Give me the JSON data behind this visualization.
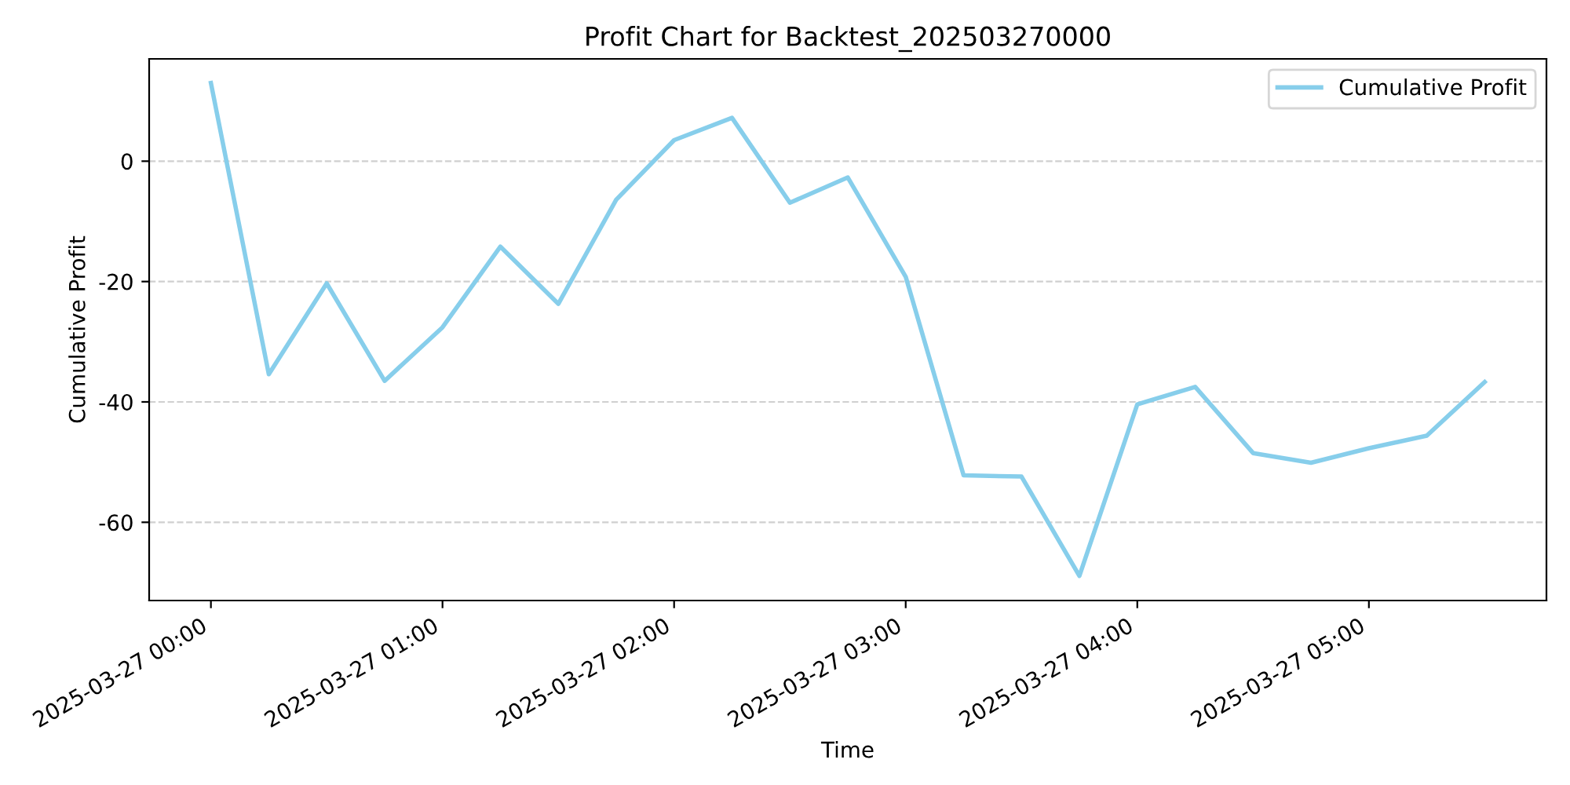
{
  "chart_data": {
    "type": "line",
    "title": "Profit Chart for Backtest_202503270000",
    "xlabel": "Time",
    "ylabel": "Cumulative Profit",
    "x": [
      "2025-03-27T00:00",
      "2025-03-27T00:15",
      "2025-03-27T00:30",
      "2025-03-27T00:45",
      "2025-03-27T01:00",
      "2025-03-27T01:15",
      "2025-03-27T01:30",
      "2025-03-27T01:45",
      "2025-03-27T02:00",
      "2025-03-27T02:15",
      "2025-03-27T02:30",
      "2025-03-27T02:45",
      "2025-03-27T03:00",
      "2025-03-27T03:15",
      "2025-03-27T03:30",
      "2025-03-27T03:45",
      "2025-03-27T04:00",
      "2025-03-27T04:15",
      "2025-03-27T04:30",
      "2025-03-27T04:45",
      "2025-03-27T05:00",
      "2025-03-27T05:15",
      "2025-03-27T05:30"
    ],
    "series": [
      {
        "name": "Cumulative Profit",
        "color": "#87ceeb",
        "values": [
          13,
          -35.4,
          -20.3,
          -36.5,
          -27.6,
          -14.2,
          -23.7,
          -6.4,
          3.5,
          7.2,
          -6.9,
          -2.7,
          -19.2,
          -52.2,
          -52.4,
          -68.9,
          -40.4,
          -37.5,
          -48.5,
          -50.1,
          -47.7,
          -45.6,
          -36.7
        ]
      }
    ],
    "xlim": [
      "2025-03-26T23:44",
      "2025-03-27T05:46"
    ],
    "xticks": [
      {
        "value": "2025-03-27T00:00",
        "label": "2025-03-27 00:00"
      },
      {
        "value": "2025-03-27T01:00",
        "label": "2025-03-27 01:00"
      },
      {
        "value": "2025-03-27T02:00",
        "label": "2025-03-27 02:00"
      },
      {
        "value": "2025-03-27T03:00",
        "label": "2025-03-27 03:00"
      },
      {
        "value": "2025-03-27T04:00",
        "label": "2025-03-27 04:00"
      },
      {
        "value": "2025-03-27T05:00",
        "label": "2025-03-27 05:00"
      }
    ],
    "ylim": [
      -73,
      17
    ],
    "yticks": [
      -60,
      -40,
      -20,
      0
    ],
    "grid": "y",
    "legend": "top right",
    "line_style": "solid",
    "marker": "none"
  }
}
